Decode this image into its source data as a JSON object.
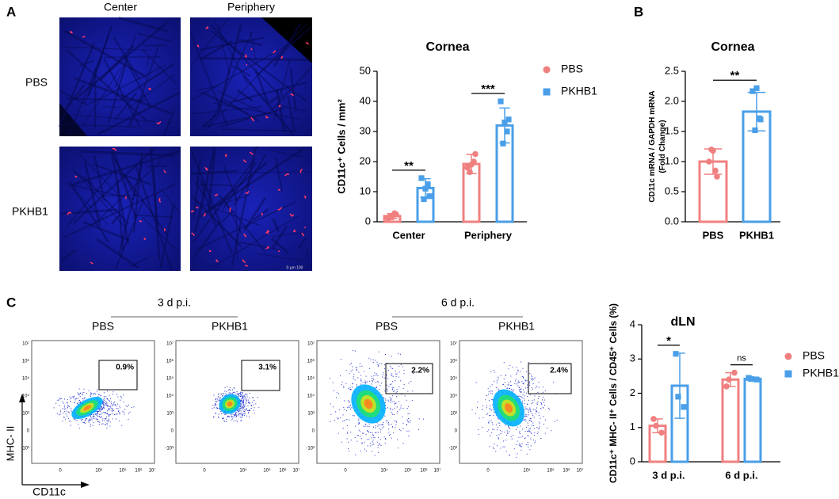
{
  "panels": [
    "A",
    "B",
    "C"
  ],
  "images": {
    "columns": [
      "Center",
      "Periphery"
    ],
    "rows": [
      "PBS",
      "PKHB1"
    ],
    "scale_bar": "0   µm   100"
  },
  "flow": {
    "timepoints": [
      "3 d p.i.",
      "6 d p.i."
    ],
    "groups": [
      "PBS",
      "PKHB1",
      "PBS",
      "PKHB1"
    ],
    "gates": [
      "0.9%",
      "3.1%",
      "2.2%",
      "2.4%"
    ],
    "ylabel": "MHC- II",
    "xlabel": "CD11c",
    "yticks": [
      "10⁷",
      "10⁶",
      "10⁵",
      "10⁴",
      "10³",
      "0",
      "-10³"
    ],
    "xticks": [
      "0",
      "10⁴",
      "10⁵",
      "10⁶",
      "10⁷"
    ]
  },
  "chart_data": [
    {
      "type": "bar",
      "title": "Cornea",
      "ylabel": [
        "CD11c⁺ Cells / mm²"
      ],
      "categories": [
        "Center",
        "Periphery"
      ],
      "series": [
        {
          "name": "PBS",
          "color": "#f08080",
          "marker": "circle",
          "values": [
            1.9,
            19.2
          ],
          "errors": [
            0.8,
            3.2
          ],
          "points": [
            [
              1.2,
              2.5,
              1.8,
              2.8,
              1.5
            ],
            [
              18,
              22.5,
              16.5,
              20,
              19
            ]
          ]
        },
        {
          "name": "PKHB1",
          "color": "#4a9fe8",
          "marker": "square",
          "values": [
            11.2,
            32
          ],
          "errors": [
            3.1,
            5.8
          ],
          "points": [
            [
              14.5,
              8.5,
              7.5,
              12.5,
              11
            ],
            [
              40,
              34,
              26,
              30,
              33
            ]
          ]
        }
      ],
      "annotations": [
        "**",
        "***"
      ],
      "ylim": [
        0,
        50
      ],
      "yticks": [
        0,
        10,
        20,
        30,
        40,
        50
      ],
      "legend": "top-right"
    },
    {
      "type": "bar",
      "title": "Cornea",
      "ylabel": [
        "CD11c mRNA / GAPDH mRNA",
        "(Fold Change)"
      ],
      "categories": [
        "PBS",
        "PKHB1"
      ],
      "series": [
        {
          "name": "PBS",
          "color": "#f08080",
          "marker": "circle",
          "values": [
            1.0,
            null
          ],
          "errors": [
            0.21,
            null
          ],
          "points": [
            [
              1.0,
              0.75,
              1.2,
              0.85,
              1.18
            ],
            []
          ]
        },
        {
          "name": "PKHB1",
          "color": "#4a9fe8",
          "marker": "square",
          "values": [
            null,
            1.83
          ],
          "errors": [
            null,
            0.32
          ],
          "points": [
            [],
            [
              2.17,
              1.7,
              1.52,
              1.72,
              2.22
            ]
          ]
        }
      ],
      "annotations": [
        "**"
      ],
      "ylim": [
        0,
        2.5
      ],
      "yticks": [
        {
          "value": 0,
          "label": "0.0"
        },
        0.5,
        {
          "value": 1,
          "label": "1.0"
        },
        1.5,
        {
          "value": 2,
          "label": "2.0"
        },
        2.5
      ]
    },
    {
      "type": "bar",
      "title": "dLN",
      "ylabel": [
        "CD11c⁺ MHC- II⁺ Cells / CD45⁺ Cells (%)"
      ],
      "categories": [
        "3 d p.i.",
        "6 d p.i."
      ],
      "series": [
        {
          "name": "PBS",
          "color": "#f08080",
          "marker": "circle",
          "values": [
            1.05,
            2.4
          ],
          "errors": [
            0.2,
            0.2
          ],
          "points": [
            [
              1.25,
              0.85,
              1.05
            ],
            [
              2.2,
              2.6,
              2.4
            ]
          ]
        },
        {
          "name": "PKHB1",
          "color": "#4a9fe8",
          "marker": "square",
          "values": [
            2.22,
            2.42
          ],
          "errors": [
            0.95,
            0.05
          ],
          "points": [
            [
              3.15,
              1.6,
              1.9
            ],
            [
              2.45,
              2.4,
              2.42
            ]
          ]
        }
      ],
      "annotations": [
        "*",
        "ns"
      ],
      "ylim": [
        0,
        4
      ],
      "yticks": [
        0,
        1,
        2,
        3,
        4
      ],
      "legend": "top-right"
    }
  ]
}
